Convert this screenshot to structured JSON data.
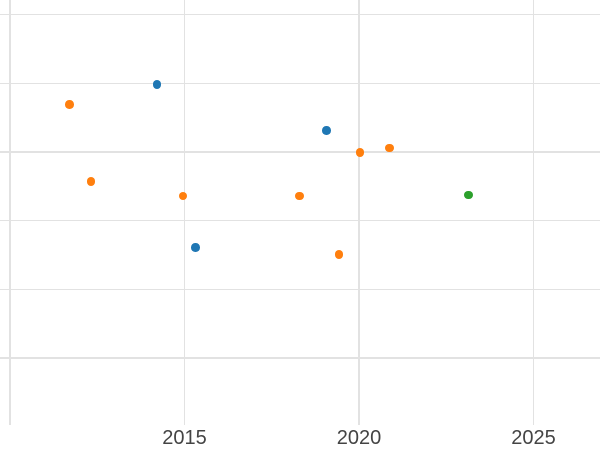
{
  "figure": {
    "background": "#ffffff",
    "grid_color": "#e2e2e2",
    "tick_label_color": "#444444"
  },
  "chart_data": {
    "type": "scatter",
    "title": "",
    "xlabel": "",
    "ylabel": "",
    "legend": false,
    "grid": true,
    "x_axis": {
      "tick_labels": [
        "2015",
        "2020",
        "2025"
      ],
      "tick_years": [
        2015,
        2020,
        2025
      ],
      "gridline_years": [
        2010,
        2015,
        2020,
        2025
      ],
      "range_years": [
        2009.7,
        2026.9
      ]
    },
    "y_axis": {
      "tick_labels_visible": false,
      "gridline_values": [
        1,
        2,
        3,
        4,
        5,
        6
      ],
      "range": [
        0.03,
        6.21
      ],
      "units": "unlabeled-gridline-units"
    },
    "series": [
      {
        "name": "blue",
        "color": "#1f77b4",
        "points": [
          {
            "x": 2014.21,
            "y": 4.98
          },
          {
            "x": 2019.07,
            "y": 4.31
          },
          {
            "x": 2015.31,
            "y": 2.61
          }
        ]
      },
      {
        "name": "orange",
        "color": "#ff7f0e",
        "points": [
          {
            "x": 2011.71,
            "y": 4.69
          },
          {
            "x": 2012.32,
            "y": 3.57
          },
          {
            "x": 2014.96,
            "y": 3.36
          },
          {
            "x": 2018.3,
            "y": 3.36
          },
          {
            "x": 2019.43,
            "y": 2.51
          },
          {
            "x": 2020.03,
            "y": 3.99
          },
          {
            "x": 2020.88,
            "y": 4.06
          }
        ]
      },
      {
        "name": "green",
        "color": "#2ca02c",
        "points": [
          {
            "x": 2023.14,
            "y": 3.37
          }
        ]
      }
    ]
  }
}
